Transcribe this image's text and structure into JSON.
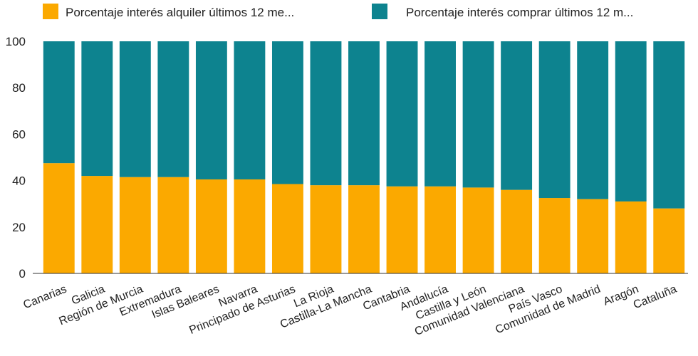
{
  "chart_data": {
    "type": "bar",
    "stacked": true,
    "categories": [
      "Canarias",
      "Galicia",
      "Región de Murcia",
      "Extremadura",
      "Islas Baleares",
      "Navarra",
      "Principado de Asturias",
      "La Rioja",
      "Castilla-La Mancha",
      "Cantabria",
      "Andalucía",
      "Castilla y León",
      "Comunidad Valenciana",
      "País Vasco",
      "Comunidad de Madrid",
      "Aragón",
      "Cataluña"
    ],
    "series": [
      {
        "name": "Porcentaje interés alquiler últimos 12 me...",
        "color": "#FBA900",
        "values": [
          47.5,
          42,
          41.5,
          41.5,
          40.5,
          40.5,
          38.5,
          38,
          38,
          37.5,
          37.5,
          37,
          36,
          32.5,
          32,
          31,
          28
        ]
      },
      {
        "name": "Porcentaje interés comprar últimos 12 m...",
        "color": "#0D838F",
        "values": [
          52.5,
          58,
          58.5,
          58.5,
          59.5,
          59.5,
          61.5,
          62,
          62,
          62.5,
          62.5,
          63,
          64,
          67.5,
          68,
          69,
          72
        ]
      }
    ],
    "ylim": [
      0,
      100
    ],
    "yticks": [
      "0",
      "20",
      "40",
      "60",
      "80",
      "100"
    ],
    "grid": false,
    "legend": "top"
  }
}
